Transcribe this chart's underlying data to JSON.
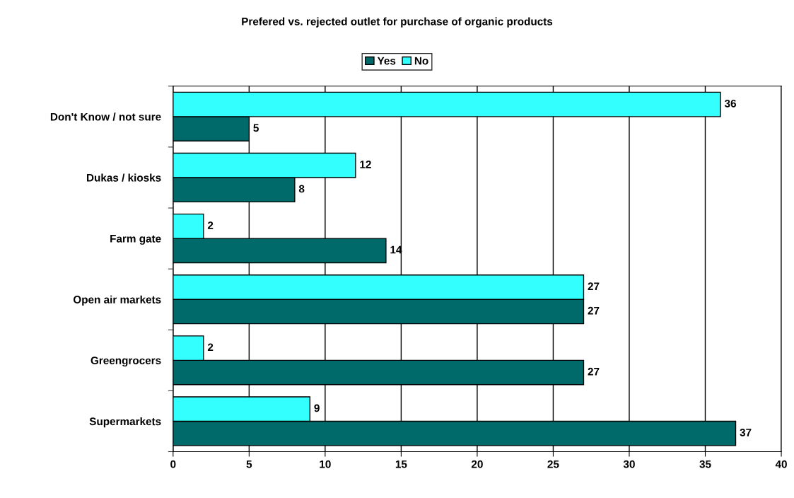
{
  "chart_data": {
    "type": "bar",
    "orientation": "horizontal",
    "title": "Prefered vs. rejected outlet for purchase of organic products",
    "categories": [
      "Don't Know / not sure",
      "Dukas / kiosks",
      "Farm gate",
      "Open air markets",
      "Greengrocers",
      "Supermarkets"
    ],
    "series": [
      {
        "name": "Yes",
        "color": "#006a6a",
        "values": [
          5,
          8,
          14,
          27,
          27,
          37
        ]
      },
      {
        "name": "No",
        "color": "#33ffff",
        "values": [
          36,
          12,
          2,
          27,
          2,
          9
        ]
      }
    ],
    "xlim": [
      0,
      40
    ],
    "xticks": [
      0,
      5,
      10,
      15,
      20,
      25,
      30,
      35,
      40
    ],
    "grid": "x",
    "legend": "top",
    "data_labels": true
  }
}
